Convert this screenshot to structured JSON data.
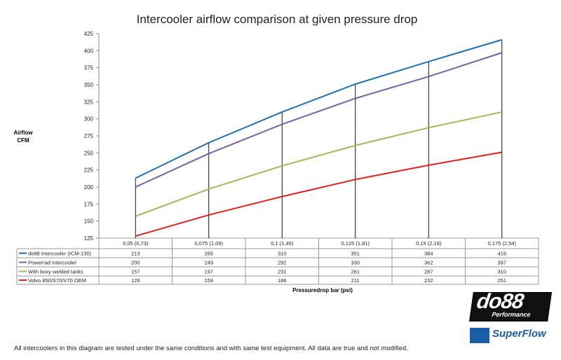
{
  "chart_data": {
    "type": "line",
    "title": "Intercooler airflow comparison at given pressure drop",
    "ylabel": [
      "Airflow",
      "CFM"
    ],
    "xlabel": "Pressuredrop bar (psi)",
    "ylim": [
      125,
      425
    ],
    "yticks": [
      125,
      150,
      175,
      200,
      225,
      250,
      275,
      300,
      325,
      350,
      375,
      400,
      425
    ],
    "categories": [
      "0,05 (0,73)",
      "0,075 (1,09)",
      "0,1 (1,45)",
      "0,125 (1,81)",
      "0,15 (2,18)",
      "0,175 (2,54)"
    ],
    "grid": false,
    "legend": "data-table",
    "series": [
      {
        "name": "do88 Intercooler (ICM-130)",
        "color": "#1f6fb0",
        "values": [
          213,
          265,
          310,
          351,
          384,
          416
        ]
      },
      {
        "name": "Powerrad intercooler",
        "color": "#7b5fa5",
        "values": [
          200,
          249,
          292,
          330,
          362,
          397
        ]
      },
      {
        "name": "With boxy welded tanks",
        "color": "#9bbb59",
        "values": [
          157,
          197,
          231,
          261,
          287,
          310
        ]
      },
      {
        "name": "Volvo 850/S70/V70 OEM",
        "color": "#e02020",
        "values": [
          128,
          159,
          186,
          211,
          232,
          251
        ]
      }
    ]
  },
  "note": "All intercoolers in this diagram are tested under the same conditions and with same test equipment. All data are true and not modified.",
  "logos": {
    "do88": "do88",
    "do88_sub": "Performance",
    "superflow": "SuperFlow"
  }
}
